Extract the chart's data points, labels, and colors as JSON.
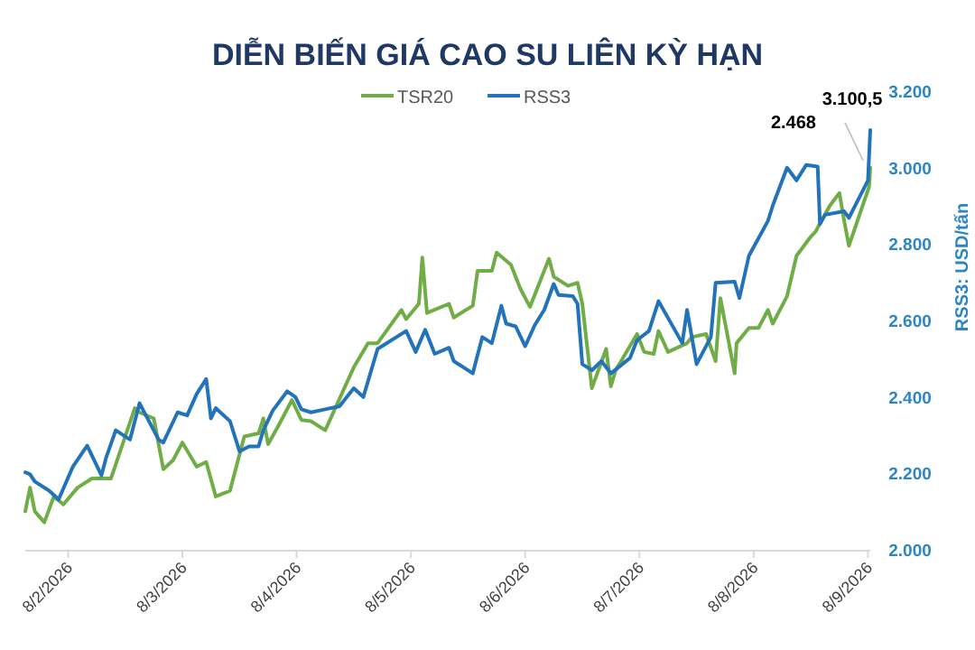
{
  "chart_data": {
    "type": "line",
    "title": "DIỄN BIẾN GIÁ CAO SU LIÊN KỲ HẠN",
    "ylabel": "RSS3: USD/tấn",
    "xlim": [
      "2026-08-01T15:00",
      "2026-08-09T00:29"
    ],
    "xticks": [
      {
        "value": "2026-08-02",
        "label": "8/2/2026"
      },
      {
        "value": "2026-08-03",
        "label": "8/3/2026"
      },
      {
        "value": "2026-08-04",
        "label": "8/4/2026"
      },
      {
        "value": "2026-08-05",
        "label": "8/5/2026"
      },
      {
        "value": "2026-08-06",
        "label": "8/6/2026"
      },
      {
        "value": "2026-08-07",
        "label": "8/7/2026"
      },
      {
        "value": "2026-08-08",
        "label": "8/8/2026"
      },
      {
        "value": "2026-08-09",
        "label": "8/9/2026"
      }
    ],
    "ylim": [
      2000,
      3200
    ],
    "yticks": [
      {
        "value": 2000,
        "label": "2.000"
      },
      {
        "value": 2200,
        "label": "2.200"
      },
      {
        "value": 2400,
        "label": "2.400"
      },
      {
        "value": 2600,
        "label": "2.600"
      },
      {
        "value": 2800,
        "label": "2.800"
      },
      {
        "value": 3000,
        "label": "3.000"
      },
      {
        "value": 3200,
        "label": "3.200"
      }
    ],
    "grid": false,
    "legend": "top",
    "marker": "none",
    "line_style": "solid",
    "series": [
      {
        "name": "TSR20",
        "color": "#70ad47",
        "x": [
          "2026-08-01T15:00",
          "2026-08-01T16:00",
          "2026-08-01T17:00",
          "2026-08-01T19:00",
          "2026-08-01T21:00",
          "2026-08-01T23:00",
          "2026-08-02T02:00",
          "2026-08-02T05:00",
          "2026-08-02T09:00",
          "2026-08-02T14:00",
          "2026-08-02T15:00",
          "2026-08-02T18:00",
          "2026-08-02T20:00",
          "2026-08-02T22:00",
          "2026-08-03T00:00",
          "2026-08-03T03:00",
          "2026-08-03T05:00",
          "2026-08-03T07:00",
          "2026-08-03T10:00",
          "2026-08-03T13:00",
          "2026-08-03T16:00",
          "2026-08-03T17:00",
          "2026-08-03T18:00",
          "2026-08-03T20:00",
          "2026-08-03T23:00",
          "2026-08-04T01:00",
          "2026-08-04T03:00",
          "2026-08-04T06:00",
          "2026-08-04T10:00",
          "2026-08-04T12:00",
          "2026-08-04T15:00",
          "2026-08-04T17:00",
          "2026-08-04T22:00",
          "2026-08-04T23:00",
          "2026-08-05T01:40",
          "2026-08-05T02:24",
          "2026-08-05T03:22",
          "2026-08-05T08:00",
          "2026-08-05T09:00",
          "2026-08-05T13:00",
          "2026-08-05T14:00",
          "2026-08-05T17:00",
          "2026-08-05T18:00",
          "2026-08-05T21:00",
          "2026-08-05T23:00",
          "2026-08-06T01:00",
          "2026-08-06T05:00",
          "2026-08-06T06:00",
          "2026-08-06T09:00",
          "2026-08-06T11:00",
          "2026-08-06T12:00",
          "2026-08-06T14:00",
          "2026-08-06T17:00",
          "2026-08-06T18:00",
          "2026-08-06T19:00",
          "2026-08-06T23:30",
          "2026-08-07T01:00",
          "2026-08-07T03:00",
          "2026-08-07T04:00",
          "2026-08-07T06:00",
          "2026-08-07T10:00",
          "2026-08-07T11:00",
          "2026-08-07T14:00",
          "2026-08-07T16:00",
          "2026-08-07T17:00",
          "2026-08-07T20:00",
          "2026-08-07T20:24",
          "2026-08-07T23:00",
          "2026-08-08T01:00",
          "2026-08-08T03:00",
          "2026-08-08T04:00",
          "2026-08-08T07:00",
          "2026-08-08T09:00",
          "2026-08-08T12:00",
          "2026-08-08T13:00",
          "2026-08-08T16:00",
          "2026-08-08T18:00",
          "2026-08-08T19:00",
          "2026-08-08T20:00",
          "2026-08-09T00:14",
          "2026-08-09T00:29"
        ],
        "values": [
          2103,
          2165,
          2103,
          2074,
          2142,
          2121,
          2165,
          2189,
          2189,
          2373,
          2362,
          2346,
          2213,
          2236,
          2283,
          2220,
          2232,
          2142,
          2157,
          2299,
          2307,
          2346,
          2279,
          2323,
          2394,
          2342,
          2339,
          2315,
          2425,
          2480,
          2543,
          2543,
          2630,
          2606,
          2646,
          2767,
          2622,
          2646,
          2610,
          2641,
          2732,
          2732,
          2780,
          2748,
          2685,
          2638,
          2764,
          2717,
          2693,
          2701,
          2646,
          2425,
          2528,
          2430,
          2472,
          2567,
          2520,
          2515,
          2575,
          2520,
          2543,
          2559,
          2567,
          2496,
          2661,
          2464,
          2543,
          2583,
          2583,
          2630,
          2594,
          2666,
          2772,
          2822,
          2835,
          2903,
          2936,
          2863,
          2798,
          2952,
          3002
        ]
      },
      {
        "name": "RSS3",
        "color": "#2273b9",
        "x": [
          "2026-08-01T15:00",
          "2026-08-01T16:00",
          "2026-08-01T17:00",
          "2026-08-01T20:00",
          "2026-08-01T22:00",
          "2026-08-02T01:00",
          "2026-08-02T04:00",
          "2026-08-02T07:00",
          "2026-08-02T08:00",
          "2026-08-02T10:00",
          "2026-08-02T13:00",
          "2026-08-02T15:00",
          "2026-08-02T19:00",
          "2026-08-02T20:00",
          "2026-08-02T23:00",
          "2026-08-03T01:00",
          "2026-08-03T03:00",
          "2026-08-03T05:00",
          "2026-08-03T06:00",
          "2026-08-03T07:00",
          "2026-08-03T10:00",
          "2026-08-03T12:00",
          "2026-08-03T14:00",
          "2026-08-03T16:00",
          "2026-08-03T17:00",
          "2026-08-03T19:00",
          "2026-08-03T22:00",
          "2026-08-03T23:45",
          "2026-08-04T01:00",
          "2026-08-04T03:00",
          "2026-08-04T06:00",
          "2026-08-04T09:00",
          "2026-08-04T12:00",
          "2026-08-04T14:00",
          "2026-08-04T17:00",
          "2026-08-04T23:00",
          "2026-08-05T01:00",
          "2026-08-05T03:00",
          "2026-08-05T05:00",
          "2026-08-05T08:00",
          "2026-08-05T09:00",
          "2026-08-05T13:00",
          "2026-08-05T14:00",
          "2026-08-05T15:00",
          "2026-08-05T17:00",
          "2026-08-05T19:00",
          "2026-08-05T20:00",
          "2026-08-05T22:00",
          "2026-08-06T00:00",
          "2026-08-06T02:00",
          "2026-08-06T04:00",
          "2026-08-06T06:00",
          "2026-08-06T07:00",
          "2026-08-06T10:00",
          "2026-08-06T11:00",
          "2026-08-06T12:00",
          "2026-08-06T14:00",
          "2026-08-06T16:00",
          "2026-08-06T18:00",
          "2026-08-06T22:00",
          "2026-08-06T23:30",
          "2026-08-07T02:00",
          "2026-08-07T04:00",
          "2026-08-07T09:00",
          "2026-08-07T10:00",
          "2026-08-07T12:00",
          "2026-08-07T15:00",
          "2026-08-07T16:00",
          "2026-08-07T20:00",
          "2026-08-07T21:00",
          "2026-08-07T23:00",
          "2026-08-08T03:00",
          "2026-08-08T04:00",
          "2026-08-08T07:00",
          "2026-08-08T09:00",
          "2026-08-08T11:00",
          "2026-08-08T13:26",
          "2026-08-08T13:55",
          "2026-08-08T15:00",
          "2026-08-08T19:00",
          "2026-08-08T20:00",
          "2026-08-08T22:00",
          "2026-08-09T00:00",
          "2026-08-09T00:29"
        ],
        "values": [
          2205,
          2200,
          2181,
          2157,
          2134,
          2220,
          2275,
          2197,
          2244,
          2315,
          2291,
          2386,
          2291,
          2283,
          2362,
          2354,
          2410,
          2449,
          2346,
          2373,
          2339,
          2260,
          2273,
          2273,
          2315,
          2367,
          2417,
          2402,
          2370,
          2362,
          2370,
          2378,
          2425,
          2402,
          2528,
          2575,
          2520,
          2578,
          2515,
          2531,
          2496,
          2464,
          2512,
          2559,
          2543,
          2641,
          2594,
          2587,
          2535,
          2590,
          2630,
          2698,
          2669,
          2666,
          2646,
          2488,
          2472,
          2496,
          2464,
          2504,
          2551,
          2575,
          2653,
          2543,
          2630,
          2488,
          2559,
          2701,
          2704,
          2661,
          2772,
          2863,
          2903,
          3002,
          2969,
          3009,
          3005,
          2855,
          2879,
          2888,
          2871,
          2920,
          2969,
          3100.5
        ]
      }
    ],
    "annotations": [
      {
        "text": "3.100,5",
        "x": "2026-08-09T00:29",
        "y": 3100.5
      },
      "2.468"
    ]
  }
}
